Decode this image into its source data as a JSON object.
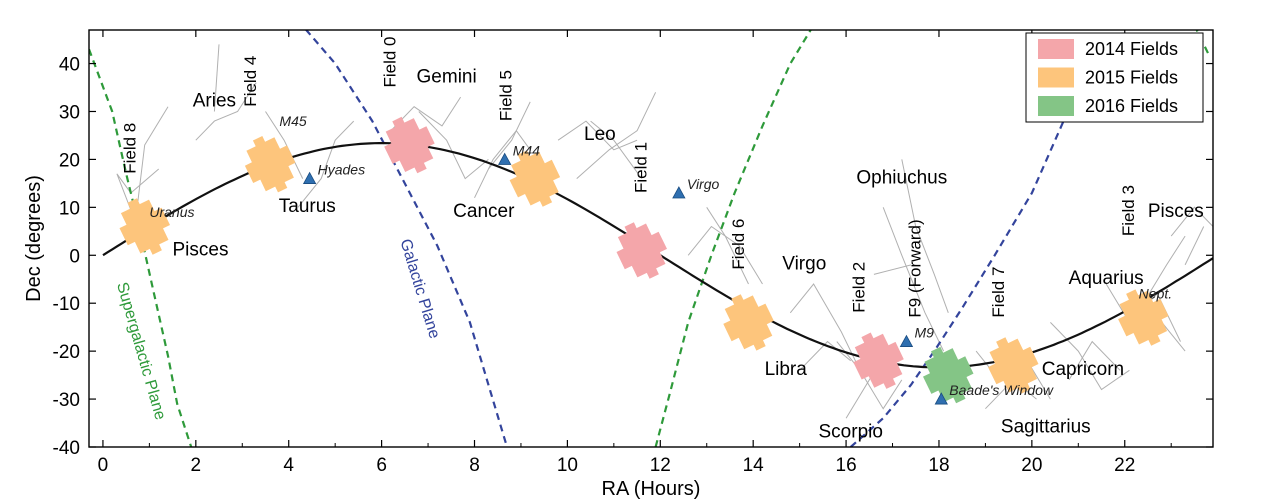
{
  "chart_data": {
    "type": "scatter",
    "xlabel": "RA (Hours)",
    "ylabel": "Dec (degrees)",
    "xlim": [
      -0.3,
      23.9
    ],
    "ylim": [
      -40,
      47
    ],
    "x_ticks": [
      0,
      2,
      4,
      6,
      8,
      10,
      12,
      14,
      16,
      18,
      20,
      22
    ],
    "y_ticks": [
      40,
      30,
      20,
      10,
      0,
      -10,
      -20,
      -30,
      -40
    ],
    "legend": {
      "placement": "top-right",
      "entries": [
        {
          "label": "2014 Fields",
          "color": "#f4a6aa"
        },
        {
          "label": "2015 Fields",
          "color": "#fdc57c"
        },
        {
          "label": "2016 Fields",
          "color": "#84c586"
        }
      ]
    },
    "colors": {
      "ecliptic": "#111111",
      "galactic_plane": "#33449c",
      "supergalactic_plane": "#2e9a3a",
      "constellation_lines": "#b0b0b0",
      "object_marker": "#2f6fb0"
    },
    "ecliptic": {
      "amplitude_deg": 23.4,
      "label": ""
    },
    "planes": [
      {
        "name": "Galactic Plane",
        "segments": [
          {
            "x": [
              4.2,
              5.0,
              5.8,
              6.5,
              7.2,
              7.9,
              8.3,
              8.7
            ],
            "y": [
              49,
              40,
              28,
              15,
              2,
              -14,
              -27,
              -40
            ]
          },
          {
            "x": [
              16.1,
              16.8,
              17.4,
              17.9,
              18.5,
              19.2,
              20.0,
              21.0
            ],
            "y": [
              -40,
              -34,
              -27,
              -20,
              -11,
              0,
              13,
              35
            ]
          }
        ]
      },
      {
        "name": "Supergalactic Plane",
        "segments": [
          {
            "x": [
              -0.3,
              0.2,
              0.5,
              0.8,
              1.1,
              1.4,
              1.6,
              1.9
            ],
            "y": [
              43,
              30,
              17,
              5,
              -8,
              -21,
              -31,
              -40
            ]
          },
          {
            "x": [
              11.9,
              12.2,
              12.6,
              13.1,
              13.6,
              14.2,
              14.8,
              15.3
            ],
            "y": [
              -40,
              -29,
              -14,
              0,
              13,
              27,
              40,
              48
            ]
          },
          {
            "x": [
              23.5,
              23.8
            ],
            "y": [
              48,
              42
            ]
          }
        ]
      }
    ],
    "plane_labels": [
      {
        "text": "Galactic Plane",
        "x": 6.4,
        "y": 3,
        "angle": 73,
        "plane": 0
      },
      {
        "text": "Supergalactic Plane",
        "x": 0.3,
        "y": -6,
        "angle": 74,
        "plane": 1
      }
    ],
    "fields": [
      {
        "name": "Field 0",
        "x": 6.6,
        "y": 23,
        "year": "2014",
        "label_x": 6.3,
        "label_y": 35
      },
      {
        "name": "Field 1",
        "x": 11.6,
        "y": 1,
        "year": "2014",
        "label_x": 11.7,
        "label_y": 13
      },
      {
        "name": "Field 2",
        "x": 16.7,
        "y": -22,
        "year": "2014",
        "label_x": 16.4,
        "label_y": -12
      },
      {
        "name": "Field 3",
        "x": 22.4,
        "y": -13,
        "year": "2015",
        "label_x": 22.2,
        "label_y": 4
      },
      {
        "name": "Field 4",
        "x": 3.6,
        "y": 19,
        "year": "2015",
        "label_x": 3.3,
        "label_y": 31
      },
      {
        "name": "Field 5",
        "x": 9.3,
        "y": 16,
        "year": "2015",
        "label_x": 8.8,
        "label_y": 28
      },
      {
        "name": "Field 6",
        "x": 13.9,
        "y": -14,
        "year": "2015",
        "label_x": 13.8,
        "label_y": -3
      },
      {
        "name": "Field 7",
        "x": 19.6,
        "y": -23,
        "year": "2015",
        "label_x": 19.4,
        "label_y": -13
      },
      {
        "name": "Field 8",
        "x": 0.9,
        "y": 6,
        "year": "2015",
        "label_x": 0.7,
        "label_y": 17
      },
      {
        "name": "F9 (Forward)",
        "x": 18.2,
        "y": -25,
        "year": "2016",
        "label_x": 17.6,
        "label_y": -13
      }
    ],
    "constellations": [
      {
        "name": "Aries",
        "x": 2.4,
        "y": 31
      },
      {
        "name": "Gemini",
        "x": 7.4,
        "y": 36
      },
      {
        "name": "Leo",
        "x": 10.7,
        "y": 24
      },
      {
        "name": "Taurus",
        "x": 4.4,
        "y": 9
      },
      {
        "name": "Cancer",
        "x": 8.2,
        "y": 8
      },
      {
        "name": "Pisces",
        "x": 2.1,
        "y": 0
      },
      {
        "name": "Ophiuchus",
        "x": 17.2,
        "y": 15
      },
      {
        "name": "Virgo",
        "x": 15.1,
        "y": -3
      },
      {
        "name": "Libra",
        "x": 14.7,
        "y": -25
      },
      {
        "name": "Scorpio",
        "x": 16.1,
        "y": -38
      },
      {
        "name": "Aquarius",
        "x": 21.6,
        "y": -6
      },
      {
        "name": "Capricorn",
        "x": 21.1,
        "y": -25
      },
      {
        "name": "Sagittarius",
        "x": 20.3,
        "y": -37
      },
      {
        "name": "Pisces",
        "x": 23.1,
        "y": 8
      }
    ],
    "objects": [
      {
        "name": "M45",
        "x": 3.8,
        "y": 27,
        "marker": false
      },
      {
        "name": "Hyades",
        "x": 4.45,
        "y": 16,
        "marker": true
      },
      {
        "name": "M44",
        "x": 8.65,
        "y": 20,
        "marker": true
      },
      {
        "name": "Virgo",
        "x": 12.4,
        "y": 13,
        "marker": true
      },
      {
        "name": "M9",
        "x": 17.3,
        "y": -18,
        "marker": true
      },
      {
        "name": "Baade's Window",
        "x": 18.05,
        "y": -30,
        "marker": true
      },
      {
        "name": "Uranus",
        "x": 1.0,
        "y": 8,
        "marker": false
      },
      {
        "name": "Nept.",
        "x": 22.3,
        "y": -9,
        "marker": false
      }
    ]
  }
}
